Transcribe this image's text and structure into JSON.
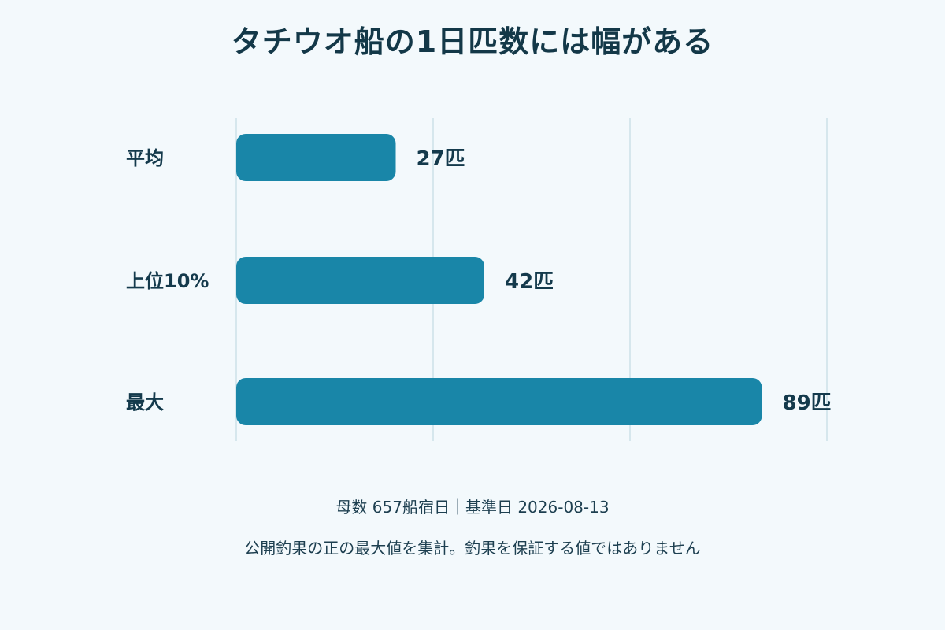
{
  "title": "タチウオ船の1日匹数には幅がある",
  "chart_data": {
    "type": "bar",
    "orientation": "horizontal",
    "categories": [
      "平均",
      "上位10%",
      "最大"
    ],
    "values": [
      27,
      42,
      89
    ],
    "value_labels": [
      "27匹",
      "42匹",
      "89匹"
    ],
    "xlim": [
      0,
      100
    ],
    "grid": true,
    "bar_color": "#1986a8"
  },
  "footnotes": {
    "line1": "母数 657船宿日｜基準日 2026-08-13",
    "line2": "公開釣果の正の最大値を集計。釣果を保証する値ではありません"
  }
}
